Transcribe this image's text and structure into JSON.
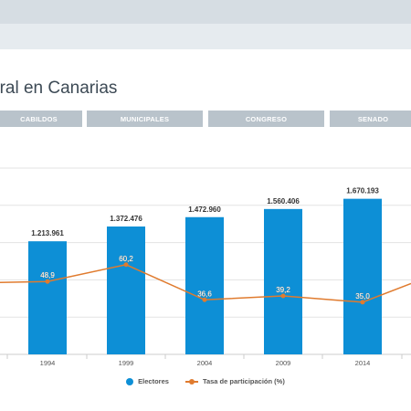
{
  "page": {
    "title": "oral en Canarias"
  },
  "tabs": [
    {
      "label": "CABILDOS"
    },
    {
      "label": "MUNICIPALES"
    },
    {
      "label": "CONGRESO"
    },
    {
      "label": "SENADO"
    }
  ],
  "colors": {
    "bars": "#0d8fd6",
    "line": "#e07b2e",
    "tab_bg": "#b9c3cb",
    "grid": "#e3e3e3"
  },
  "chart_data": {
    "type": "bar",
    "categories": [
      "1994",
      "1999",
      "2004",
      "2009",
      "2014"
    ],
    "series": [
      {
        "name": "Electores",
        "kind": "bar",
        "values": [
          1213961,
          1372476,
          1472960,
          1560406,
          1670193
        ],
        "labels": [
          "1.213.961",
          "1.372.476",
          "1.472.960",
          "1.560.406",
          "1.670.193"
        ]
      },
      {
        "name": "Tasa de participación (%)",
        "kind": "line",
        "values": [
          48.9,
          60.2,
          36.6,
          39.2,
          35.0
        ],
        "labels": [
          "48,9",
          "60,2",
          "36,6",
          "39,2",
          "35,0"
        ]
      }
    ],
    "ylim": [
      0,
      2000000
    ],
    "y2lim": [
      0,
      125
    ],
    "grid": true,
    "legend": "bottom"
  }
}
